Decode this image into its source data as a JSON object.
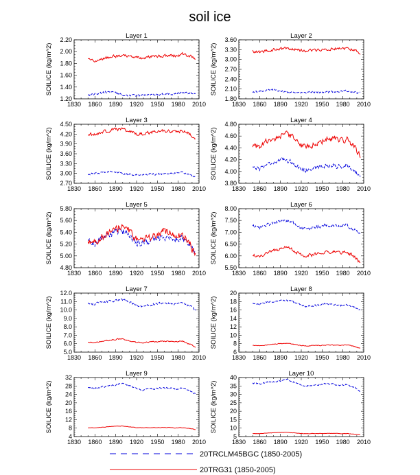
{
  "title": "soil ice",
  "colors": {
    "model_a": "#0000dd",
    "model_b": "#ee0000"
  },
  "legend": [
    {
      "label": "20TRCLM45BGC (1850-2005)",
      "color": "#0000dd",
      "style": "dashed"
    },
    {
      "label": "20TRG31 (1850-2005)",
      "color": "#ee0000",
      "style": "solid"
    }
  ],
  "chart_data": [
    {
      "type": "line",
      "title": "Layer 1",
      "ylabel": "SOILICE  (kg/m^2)",
      "xlim": [
        1830,
        2010
      ],
      "xticks": [
        1830,
        1860,
        1890,
        1920,
        1950,
        1980,
        2010
      ],
      "ylim": [
        1.2,
        2.2
      ],
      "yticks": [
        "1.20",
        "1.40",
        "1.60",
        "1.80",
        "2.00",
        "2.20"
      ],
      "series": [
        {
          "name": "20TRCLM45BGC (1850-2005)",
          "mean_by_decade": [
            1.27,
            1.28,
            1.3,
            1.32,
            1.3,
            1.27,
            1.26,
            1.25,
            1.26,
            1.28,
            1.27,
            1.28,
            1.29,
            1.28,
            1.3,
            1.3,
            1.29
          ],
          "amplitude": 0.025,
          "x_start": 1850,
          "x_end": 2005
        },
        {
          "name": "20TRG31 (1850-2005)",
          "mean_by_decade": [
            1.86,
            1.85,
            1.88,
            1.9,
            1.92,
            1.93,
            1.93,
            1.9,
            1.89,
            1.91,
            1.92,
            1.93,
            1.94,
            1.93,
            1.96,
            1.93,
            1.88
          ],
          "amplitude": 0.035,
          "x_start": 1850,
          "x_end": 2005
        }
      ]
    },
    {
      "type": "line",
      "title": "Layer 2",
      "ylabel": "SOILICE  (kg/m^2)",
      "xlim": [
        1830,
        2010
      ],
      "xticks": [
        1830,
        1860,
        1890,
        1920,
        1950,
        1980,
        2010
      ],
      "ylim": [
        1.8,
        3.6
      ],
      "yticks": [
        "1.80",
        "2.10",
        "2.40",
        "2.70",
        "3.00",
        "3.30",
        "3.60"
      ],
      "series": [
        {
          "name": "20TRCLM45BGC (1850-2005)",
          "mean_by_decade": [
            2.0,
            2.02,
            2.05,
            2.08,
            2.06,
            2.02,
            2.0,
            1.98,
            1.99,
            2.01,
            2.0,
            2.01,
            2.02,
            2.03,
            2.04,
            2.01,
            1.98
          ],
          "amplitude": 0.04,
          "x_start": 1850,
          "x_end": 2005
        },
        {
          "name": "20TRG31 (1850-2005)",
          "mean_by_decade": [
            3.25,
            3.22,
            3.27,
            3.3,
            3.33,
            3.34,
            3.32,
            3.28,
            3.27,
            3.29,
            3.3,
            3.31,
            3.33,
            3.32,
            3.35,
            3.3,
            3.2
          ],
          "amplitude": 0.06,
          "x_start": 1850,
          "x_end": 2005
        }
      ]
    },
    {
      "type": "line",
      "title": "Layer 3",
      "ylabel": "SOILICE  (kg/m^2)",
      "xlim": [
        1830,
        2010
      ],
      "xticks": [
        1830,
        1860,
        1890,
        1920,
        1950,
        1980,
        2010
      ],
      "ylim": [
        2.7,
        4.5
      ],
      "yticks": [
        "2.70",
        "3.00",
        "3.30",
        "3.60",
        "3.90",
        "4.20",
        "4.50"
      ],
      "series": [
        {
          "name": "20TRCLM45BGC (1850-2005)",
          "mean_by_decade": [
            2.98,
            2.99,
            3.02,
            3.07,
            3.05,
            3.0,
            2.97,
            2.95,
            2.96,
            2.98,
            2.98,
            2.99,
            3.0,
            3.0,
            3.02,
            2.98,
            2.9
          ],
          "amplitude": 0.04,
          "x_start": 1850,
          "x_end": 2005
        },
        {
          "name": "20TRG31 (1850-2005)",
          "mean_by_decade": [
            4.2,
            4.18,
            4.25,
            4.3,
            4.33,
            4.35,
            4.3,
            4.22,
            4.2,
            4.24,
            4.25,
            4.28,
            4.3,
            4.28,
            4.3,
            4.22,
            4.05
          ],
          "amplitude": 0.07,
          "x_start": 1850,
          "x_end": 2005
        }
      ]
    },
    {
      "type": "line",
      "title": "Layer 4",
      "ylabel": "SOILICE  (kg/m^2)",
      "xlim": [
        1830,
        2010
      ],
      "xticks": [
        1830,
        1860,
        1890,
        1920,
        1950,
        1980,
        2010
      ],
      "ylim": [
        3.8,
        4.8
      ],
      "yticks": [
        "3.80",
        "4.00",
        "4.20",
        "4.40",
        "4.60",
        "4.80"
      ],
      "series": [
        {
          "name": "20TRCLM45BGC (1850-2005)",
          "mean_by_decade": [
            4.08,
            4.05,
            4.12,
            4.15,
            4.18,
            4.2,
            4.15,
            4.05,
            4.02,
            4.06,
            4.08,
            4.1,
            4.1,
            4.08,
            4.1,
            4.03,
            3.92
          ],
          "amplitude": 0.05,
          "x_start": 1850,
          "x_end": 2005
        },
        {
          "name": "20TRG31 (1850-2005)",
          "mean_by_decade": [
            4.45,
            4.4,
            4.5,
            4.55,
            4.6,
            4.65,
            4.58,
            4.45,
            4.4,
            4.45,
            4.48,
            4.55,
            4.58,
            4.52,
            4.55,
            4.45,
            4.25
          ],
          "amplitude": 0.07,
          "x_start": 1850,
          "x_end": 2005
        }
      ]
    },
    {
      "type": "line",
      "title": "Layer 5",
      "ylabel": "SOILICE  (kg/m^2)",
      "xlim": [
        1830,
        2010
      ],
      "xticks": [
        1830,
        1860,
        1890,
        1920,
        1950,
        1980,
        2010
      ],
      "ylim": [
        4.8,
        5.8
      ],
      "yticks": [
        "4.80",
        "5.00",
        "5.20",
        "5.40",
        "5.60",
        "5.80"
      ],
      "series": [
        {
          "name": "20TRCLM45BGC (1850-2005)",
          "mean_by_decade": [
            5.25,
            5.22,
            5.3,
            5.35,
            5.4,
            5.42,
            5.38,
            5.25,
            5.2,
            5.25,
            5.28,
            5.3,
            5.3,
            5.28,
            5.3,
            5.2,
            5.05
          ],
          "amplitude": 0.08,
          "x_start": 1850,
          "x_end": 2005
        },
        {
          "name": "20TRG31 (1850-2005)",
          "mean_by_decade": [
            5.28,
            5.25,
            5.32,
            5.38,
            5.45,
            5.5,
            5.42,
            5.3,
            5.25,
            5.3,
            5.35,
            5.4,
            5.42,
            5.35,
            5.38,
            5.25,
            5.0
          ],
          "amplitude": 0.09,
          "x_start": 1850,
          "x_end": 2005
        }
      ]
    },
    {
      "type": "line",
      "title": "Layer 6",
      "ylabel": "SOILICE  (kg/m^2)",
      "xlim": [
        1830,
        2010
      ],
      "xticks": [
        1830,
        1860,
        1890,
        1920,
        1950,
        1980,
        2010
      ],
      "ylim": [
        5.5,
        8.0
      ],
      "yticks": [
        "5.50",
        "6.00",
        "6.50",
        "7.00",
        "7.50",
        "8.00"
      ],
      "series": [
        {
          "name": "20TRCLM45BGC (1850-2005)",
          "mean_by_decade": [
            7.25,
            7.2,
            7.3,
            7.4,
            7.45,
            7.5,
            7.4,
            7.2,
            7.1,
            7.2,
            7.25,
            7.3,
            7.3,
            7.25,
            7.3,
            7.15,
            6.9
          ],
          "amplitude": 0.1,
          "x_start": 1850,
          "x_end": 2005
        },
        {
          "name": "20TRG31 (1850-2005)",
          "mean_by_decade": [
            6.05,
            5.95,
            6.1,
            6.2,
            6.3,
            6.35,
            6.25,
            6.05,
            6.0,
            6.05,
            6.1,
            6.15,
            6.2,
            6.1,
            6.15,
            6.0,
            5.7
          ],
          "amplitude": 0.1,
          "x_start": 1850,
          "x_end": 2005
        }
      ]
    },
    {
      "type": "line",
      "title": "Layer 7",
      "ylabel": "SOILICE  (kg/m^2)",
      "xlim": [
        1830,
        2010
      ],
      "xticks": [
        1830,
        1860,
        1890,
        1920,
        1950,
        1980,
        2010
      ],
      "ylim": [
        5.0,
        12.0
      ],
      "yticks": [
        "5.0",
        "6.0",
        "7.0",
        "8.0",
        "9.0",
        "10.0",
        "11.0",
        "12.0"
      ],
      "series": [
        {
          "name": "20TRCLM45BGC (1850-2005)",
          "mean_by_decade": [
            10.8,
            10.7,
            10.9,
            11.0,
            11.1,
            11.2,
            11.0,
            10.6,
            10.4,
            10.6,
            10.7,
            10.8,
            10.8,
            10.7,
            10.8,
            10.5,
            10.0
          ],
          "amplitude": 0.18,
          "x_start": 1850,
          "x_end": 2005
        },
        {
          "name": "20TRG31 (1850-2005)",
          "mean_by_decade": [
            6.2,
            6.1,
            6.3,
            6.4,
            6.5,
            6.6,
            6.4,
            6.2,
            6.1,
            6.2,
            6.2,
            6.3,
            6.3,
            6.2,
            6.3,
            6.0,
            5.6
          ],
          "amplitude": 0.1,
          "x_start": 1850,
          "x_end": 2005
        }
      ]
    },
    {
      "type": "line",
      "title": "Layer 8",
      "ylabel": "SOILICE  (kg/m^2)",
      "xlim": [
        1830,
        2010
      ],
      "xticks": [
        1830,
        1860,
        1890,
        1920,
        1950,
        1980,
        2010
      ],
      "ylim": [
        6,
        20
      ],
      "yticks": [
        "6",
        "8",
        "10",
        "12",
        "14",
        "16",
        "18",
        "20"
      ],
      "series": [
        {
          "name": "20TRCLM45BGC (1850-2005)",
          "mean_by_decade": [
            17.5,
            17.3,
            17.8,
            18.0,
            18.2,
            18.3,
            18.0,
            17.2,
            16.8,
            17.0,
            17.2,
            17.4,
            17.3,
            17.0,
            17.2,
            16.8,
            15.8
          ],
          "amplitude": 0.3,
          "x_start": 1850,
          "x_end": 2005
        },
        {
          "name": "20TRG31 (1850-2005)",
          "mean_by_decade": [
            7.6,
            7.5,
            7.7,
            7.9,
            8.0,
            8.1,
            7.9,
            7.6,
            7.5,
            7.6,
            7.6,
            7.7,
            7.7,
            7.6,
            7.7,
            7.4,
            6.9
          ],
          "amplitude": 0.12,
          "x_start": 1850,
          "x_end": 2005
        }
      ]
    },
    {
      "type": "line",
      "title": "Layer 9",
      "ylabel": "SOILICE  (kg/m^2)",
      "xlim": [
        1830,
        2010
      ],
      "xticks": [
        1830,
        1860,
        1890,
        1920,
        1950,
        1980,
        2010
      ],
      "ylim": [
        4,
        32
      ],
      "yticks": [
        "4",
        "8",
        "12",
        "16",
        "20",
        "24",
        "28",
        "32"
      ],
      "series": [
        {
          "name": "20TRCLM45BGC (1850-2005)",
          "mean_by_decade": [
            27.0,
            26.8,
            27.5,
            28.0,
            28.5,
            29.0,
            28.5,
            27.0,
            26.0,
            26.5,
            26.8,
            27.0,
            27.0,
            26.5,
            26.8,
            26.0,
            24.0
          ],
          "amplitude": 0.5,
          "x_start": 1850,
          "x_end": 2005
        },
        {
          "name": "20TRG31 (1850-2005)",
          "mean_by_decade": [
            8.2,
            8.1,
            8.4,
            8.7,
            8.9,
            9.0,
            8.7,
            8.3,
            8.1,
            8.2,
            8.2,
            8.3,
            8.3,
            8.1,
            8.2,
            7.9,
            7.3
          ],
          "amplitude": 0.15,
          "x_start": 1850,
          "x_end": 2005
        }
      ]
    },
    {
      "type": "line",
      "title": "Layer 10",
      "ylabel": "SOILICE  (kg/m^2)",
      "xlim": [
        1830,
        2010
      ],
      "xticks": [
        1830,
        1860,
        1890,
        1920,
        1950,
        1980,
        2010
      ],
      "ylim": [
        5,
        40
      ],
      "yticks": [
        "5",
        "10",
        "15",
        "20",
        "25",
        "30",
        "35",
        "40"
      ],
      "series": [
        {
          "name": "20TRCLM45BGC (1850-2005)",
          "mean_by_decade": [
            36.5,
            36.3,
            37.0,
            37.5,
            38.0,
            39.0,
            37.5,
            35.5,
            35.0,
            35.5,
            36.0,
            36.5,
            36.0,
            35.5,
            35.8,
            34.5,
            32.0
          ],
          "amplitude": 0.6,
          "x_start": 1850,
          "x_end": 2005
        },
        {
          "name": "20TRG31 (1850-2005)",
          "mean_by_decade": [
            6.8,
            6.7,
            7.0,
            7.2,
            7.4,
            7.5,
            7.2,
            6.9,
            6.7,
            6.8,
            6.8,
            6.9,
            6.9,
            6.7,
            6.8,
            6.5,
            6.0
          ],
          "amplitude": 0.15,
          "x_start": 1850,
          "x_end": 2005
        }
      ]
    }
  ]
}
